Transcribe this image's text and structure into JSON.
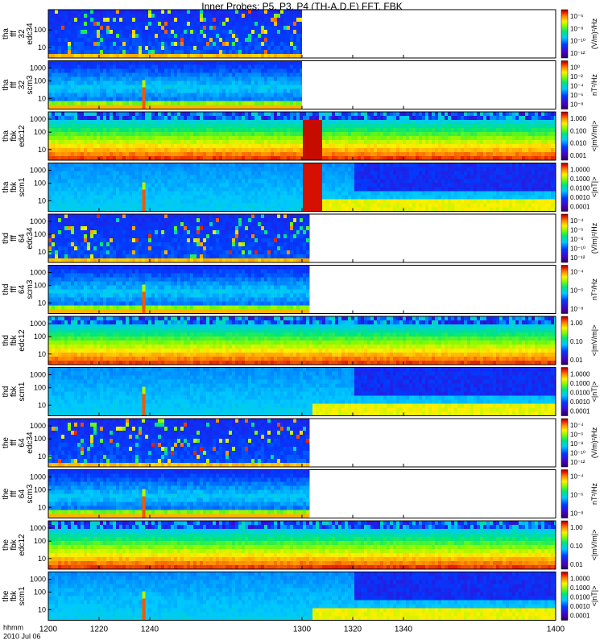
{
  "chart_data": {
    "type": "heatmap",
    "title": "Inner Probes: P5, P3, P4 (TH-A,D,E) FFT, FBK",
    "x_axis": {
      "label_lines": [
        "hhmm",
        "2010 Jul 06"
      ],
      "ticks": [
        "1200",
        "1220",
        "1240",
        "1300",
        "1320",
        "1340",
        "1400"
      ],
      "range": [
        1200,
        1400
      ]
    },
    "y_scale": "log",
    "panels": [
      {
        "label": [
          "tha",
          "fff",
          "32",
          "edc34"
        ],
        "yticks": [
          "100",
          "10"
        ],
        "zticks": [
          "10⁻⁶",
          "10⁻⁸",
          "10⁻¹⁰",
          "10⁻¹²"
        ],
        "zlabel": "(V/m)²/Hz",
        "data_end": 1300,
        "kind": "fft_e"
      },
      {
        "label": [
          "tha",
          "fff",
          "32",
          "scm3"
        ],
        "yticks": [
          "1000",
          "100",
          "10"
        ],
        "zticks": [
          "10⁰",
          "10⁻²",
          "10⁻⁴",
          "10⁻⁶",
          "10⁻⁸"
        ],
        "zlabel": "nT²/Hz",
        "data_end": 1300,
        "kind": "fft_b",
        "spike": 1237
      },
      {
        "label": [
          "tha",
          "fbk",
          "edc12"
        ],
        "yticks": [
          "1000",
          "100",
          "10"
        ],
        "zticks": [
          "1.000",
          "0.100",
          "0.010",
          "0.001"
        ],
        "zlabel": "<|mV/m|>",
        "data_end": 1400,
        "kind": "fbk_e_a"
      },
      {
        "label": [
          "tha",
          "fbk",
          "scm1"
        ],
        "yticks": [
          "1000",
          "100",
          "10"
        ],
        "zticks": [
          "1.0000",
          "0.1000",
          "0.0100",
          "0.0010",
          "0.0001"
        ],
        "zlabel": "<|nT|>",
        "data_end": 1400,
        "kind": "fbk_b_a",
        "spike": 1237
      },
      {
        "label": [
          "thd",
          "fff",
          "64",
          "edc34"
        ],
        "yticks": [
          "1000",
          "100",
          "10"
        ],
        "zticks": [
          "10⁻⁴",
          "10⁻⁶",
          "10⁻⁸",
          "10⁻¹⁰",
          "10⁻¹²"
        ],
        "zlabel": "(V/m)²/Hz",
        "data_end": 1303,
        "kind": "fft_e64"
      },
      {
        "label": [
          "thd",
          "fff",
          "64",
          "scm3"
        ],
        "yticks": [
          "1000",
          "100",
          "10"
        ],
        "zticks": [
          "10⁻⁴",
          "10⁻⁶",
          "10⁻⁸"
        ],
        "zlabel": "nT²/Hz",
        "data_end": 1303,
        "kind": "fft_b64",
        "spike": 1237
      },
      {
        "label": [
          "thd",
          "fbk",
          "edc12"
        ],
        "yticks": [
          "1000",
          "100",
          "10"
        ],
        "zticks": [
          "1.00",
          "0.10",
          "0.01"
        ],
        "zlabel": "<|mV/m|>",
        "data_end": 1400,
        "kind": "fbk_e"
      },
      {
        "label": [
          "thd",
          "fbk",
          "scm1"
        ],
        "yticks": [
          "1000",
          "100",
          "10"
        ],
        "zticks": [
          "1.0000",
          "0.1000",
          "0.0100",
          "0.0010",
          "0.0001"
        ],
        "zlabel": "<|nT|>",
        "data_end": 1400,
        "kind": "fbk_b",
        "spike": 1237
      },
      {
        "label": [
          "the",
          "fff",
          "64",
          "edc34"
        ],
        "yticks": [
          "1000",
          "100",
          "10"
        ],
        "zticks": [
          "10⁻⁴",
          "10⁻⁶",
          "10⁻⁸",
          "10⁻¹⁰",
          "10⁻¹²"
        ],
        "zlabel": "(V/m)²/Hz",
        "data_end": 1303,
        "kind": "fft_e64"
      },
      {
        "label": [
          "the",
          "fff",
          "64",
          "scm3"
        ],
        "yticks": [
          "1000",
          "100",
          "10"
        ],
        "zticks": [
          "10⁻⁴",
          "10⁻⁶",
          "10⁻⁸"
        ],
        "zlabel": "nT²/Hz",
        "data_end": 1303,
        "kind": "fft_b64",
        "spike": 1237
      },
      {
        "label": [
          "the",
          "fbk",
          "edc12"
        ],
        "yticks": [
          "1000",
          "100",
          "10"
        ],
        "zticks": [
          "1.00",
          "0.10",
          "0.01"
        ],
        "zlabel": "<|mV/m|>",
        "data_end": 1400,
        "kind": "fbk_e"
      },
      {
        "label": [
          "the",
          "fbk",
          "scm1"
        ],
        "yticks": [
          "1000",
          "100",
          "10"
        ],
        "zticks": [
          "1.0000",
          "0.1000",
          "0.0100",
          "0.0010",
          "0.0001"
        ],
        "zlabel": "<|nT|>",
        "data_end": 1400,
        "kind": "fbk_b",
        "spike": 1237
      }
    ]
  }
}
